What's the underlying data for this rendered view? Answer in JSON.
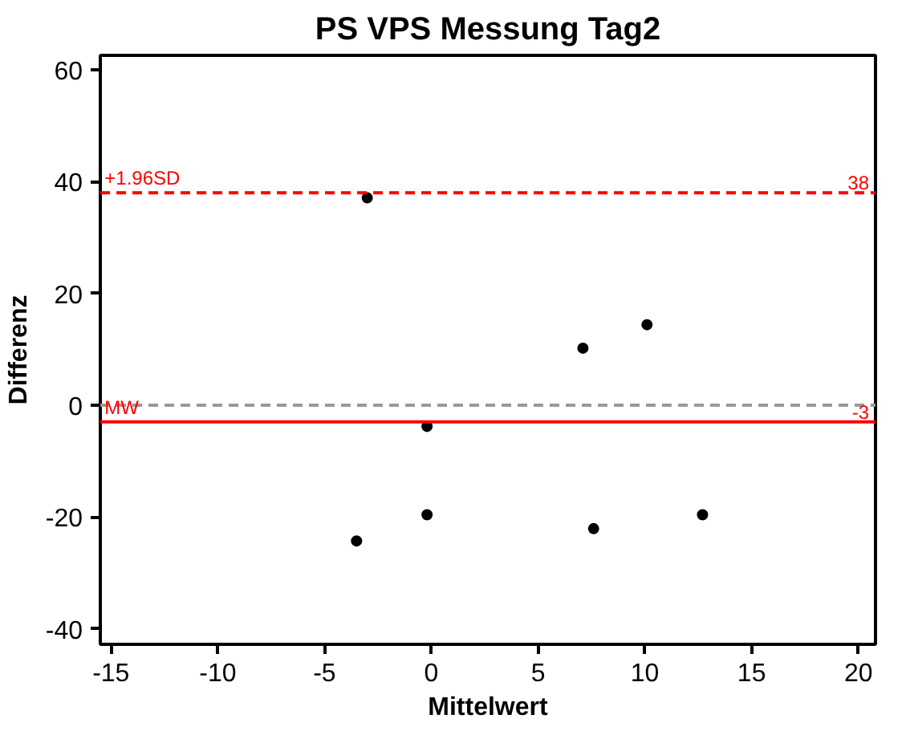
{
  "chart_data": {
    "type": "scatter",
    "title": "PS VPS Messung Tag2",
    "xlabel": "Mittelwert",
    "ylabel": "Differenz",
    "x": [
      -3.0,
      -0.2,
      -0.2,
      -3.5,
      7.1,
      10.1,
      7.6,
      12.7
    ],
    "values": [
      37.1,
      -3.8,
      -19.6,
      -24.3,
      10.2,
      14.4,
      -22.1,
      -19.6
    ],
    "color": "#000000",
    "marker": "circle",
    "xlim": [
      -15.5,
      20.8
    ],
    "ylim": [
      -42.8,
      62.6
    ],
    "xticks": [
      -15,
      -10,
      -5,
      0,
      5,
      10,
      15,
      20
    ],
    "yticks": [
      -40,
      -20,
      0,
      20,
      40,
      60
    ],
    "grid": false,
    "ref_lines": [
      {
        "axis": "y",
        "value": 38,
        "label": "+1.96SD",
        "color": "#ff0000",
        "line_style": "dashed"
      },
      {
        "axis": "y",
        "value": 0,
        "color": "#999999",
        "line_style": "dashed"
      },
      {
        "axis": "y",
        "value": -3,
        "label": "MW",
        "color": "#ff0000",
        "line_style": "solid"
      }
    ],
    "annotations": [
      {
        "text": "38",
        "x": 20.5,
        "y": 38
      },
      {
        "text": "-3",
        "x": 20.5,
        "y": -3
      }
    ]
  }
}
